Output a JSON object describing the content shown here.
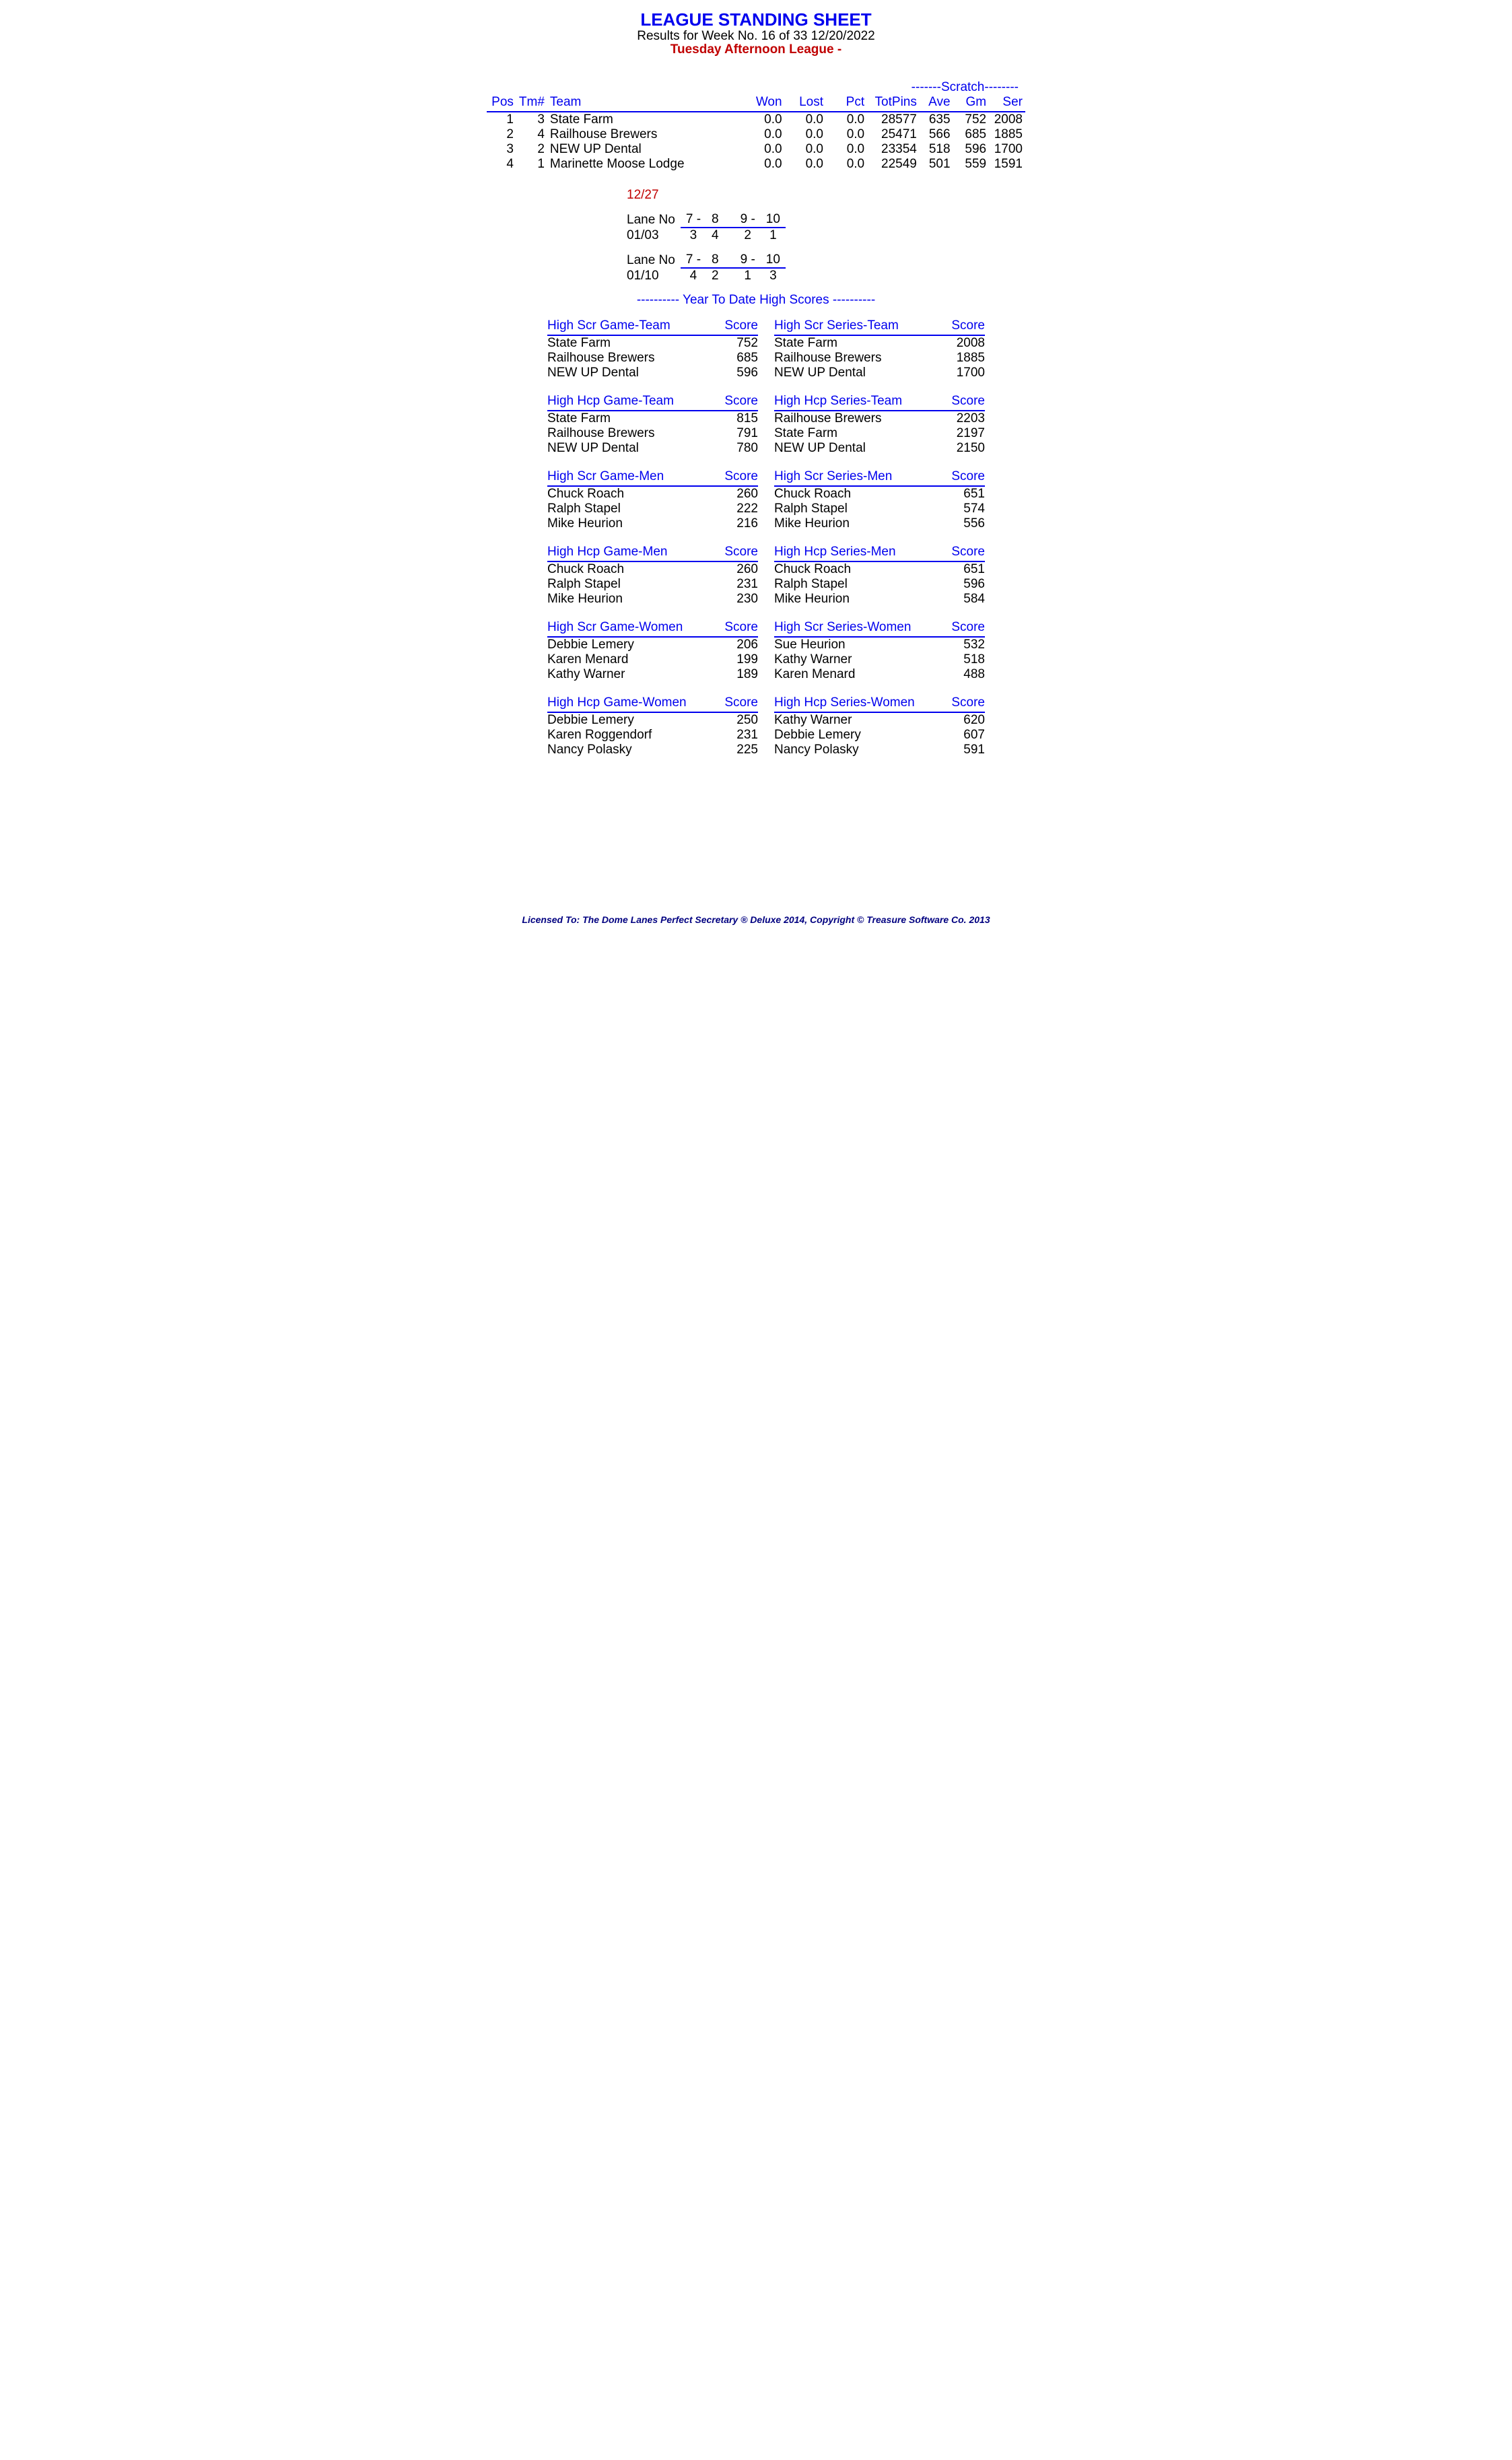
{
  "header": {
    "title": "LEAGUE STANDING SHEET",
    "subtitle": "Results for Week No. 16 of 33    12/20/2022",
    "league": "Tuesday Afternoon League -"
  },
  "standings": {
    "scratch_label": "-------Scratch--------",
    "columns": {
      "pos": "Pos",
      "tm": "Tm#",
      "team": "Team",
      "won": "Won",
      "lost": "Lost",
      "pct": "Pct",
      "totpins": "TotPins",
      "ave": "Ave",
      "gm": "Gm",
      "ser": "Ser"
    },
    "rows": [
      {
        "pos": "1",
        "tm": "3",
        "team": "State Farm",
        "won": "0.0",
        "lost": "0.0",
        "pct": "0.0",
        "totpins": "28577",
        "ave": "635",
        "gm": "752",
        "ser": "2008"
      },
      {
        "pos": "2",
        "tm": "4",
        "team": "Railhouse Brewers",
        "won": "0.0",
        "lost": "0.0",
        "pct": "0.0",
        "totpins": "25471",
        "ave": "566",
        "gm": "685",
        "ser": "1885"
      },
      {
        "pos": "3",
        "tm": "2",
        "team": "NEW UP Dental",
        "won": "0.0",
        "lost": "0.0",
        "pct": "0.0",
        "totpins": "23354",
        "ave": "518",
        "gm": "596",
        "ser": "1700"
      },
      {
        "pos": "4",
        "tm": "1",
        "team": "Marinette Moose Lodge",
        "won": "0.0",
        "lost": "0.0",
        "pct": "0.0",
        "totpins": "22549",
        "ave": "501",
        "gm": "559",
        "ser": "1591"
      }
    ]
  },
  "no_league_date": "12/27",
  "lane_schedule": [
    {
      "lane_label": "Lane No",
      "l1": "7 -",
      "l2": "8",
      "l3": "9 -",
      "l4": "10",
      "date": "01/03",
      "a": "3",
      "b": "4",
      "c": "2",
      "d": "1"
    },
    {
      "lane_label": "Lane No",
      "l1": "7 -",
      "l2": "8",
      "l3": "9 -",
      "l4": "10",
      "date": "01/10",
      "a": "4",
      "b": "2",
      "c": "1",
      "d": "3"
    }
  ],
  "ytd_label": "---------- Year To Date High Scores ----------",
  "score_label": "Score",
  "blocks": [
    {
      "title": "High Scr Game-Team",
      "rows": [
        [
          "State Farm",
          "752"
        ],
        [
          "Railhouse Brewers",
          "685"
        ],
        [
          "NEW UP Dental",
          "596"
        ]
      ]
    },
    {
      "title": "High Scr Series-Team",
      "rows": [
        [
          "State Farm",
          "2008"
        ],
        [
          "Railhouse Brewers",
          "1885"
        ],
        [
          "NEW UP Dental",
          "1700"
        ]
      ]
    },
    {
      "title": "High Hcp Game-Team",
      "rows": [
        [
          "State Farm",
          "815"
        ],
        [
          "Railhouse Brewers",
          "791"
        ],
        [
          "NEW UP Dental",
          "780"
        ]
      ]
    },
    {
      "title": "High Hcp Series-Team",
      "rows": [
        [
          "Railhouse Brewers",
          "2203"
        ],
        [
          "State Farm",
          "2197"
        ],
        [
          "NEW UP Dental",
          "2150"
        ]
      ]
    },
    {
      "title": "High Scr Game-Men",
      "rows": [
        [
          "Chuck Roach",
          "260"
        ],
        [
          "Ralph Stapel",
          "222"
        ],
        [
          "Mike Heurion",
          "216"
        ]
      ]
    },
    {
      "title": "High Scr Series-Men",
      "rows": [
        [
          "Chuck Roach",
          "651"
        ],
        [
          "Ralph Stapel",
          "574"
        ],
        [
          "Mike Heurion",
          "556"
        ]
      ]
    },
    {
      "title": "High Hcp Game-Men",
      "rows": [
        [
          "Chuck Roach",
          "260"
        ],
        [
          "Ralph Stapel",
          "231"
        ],
        [
          "Mike Heurion",
          "230"
        ]
      ]
    },
    {
      "title": "High Hcp Series-Men",
      "rows": [
        [
          "Chuck Roach",
          "651"
        ],
        [
          "Ralph Stapel",
          "596"
        ],
        [
          "Mike Heurion",
          "584"
        ]
      ]
    },
    {
      "title": "High Scr Game-Women",
      "rows": [
        [
          "Debbie Lemery",
          "206"
        ],
        [
          "Karen Menard",
          "199"
        ],
        [
          "Kathy Warner",
          "189"
        ]
      ]
    },
    {
      "title": "High Scr Series-Women",
      "rows": [
        [
          "Sue Heurion",
          "532"
        ],
        [
          "Kathy Warner",
          "518"
        ],
        [
          "Karen Menard",
          "488"
        ]
      ]
    },
    {
      "title": "High Hcp Game-Women",
      "rows": [
        [
          "Debbie Lemery",
          "250"
        ],
        [
          "Karen Roggendorf",
          "231"
        ],
        [
          "Nancy Polasky",
          "225"
        ]
      ]
    },
    {
      "title": "High Hcp Series-Women",
      "rows": [
        [
          "Kathy Warner",
          "620"
        ],
        [
          "Debbie Lemery",
          "607"
        ],
        [
          "Nancy Polasky",
          "591"
        ]
      ]
    }
  ],
  "footer": "Licensed To: The Dome Lanes    Perfect Secretary ® Deluxe  2014, Copyright © Treasure Software Co. 2013"
}
